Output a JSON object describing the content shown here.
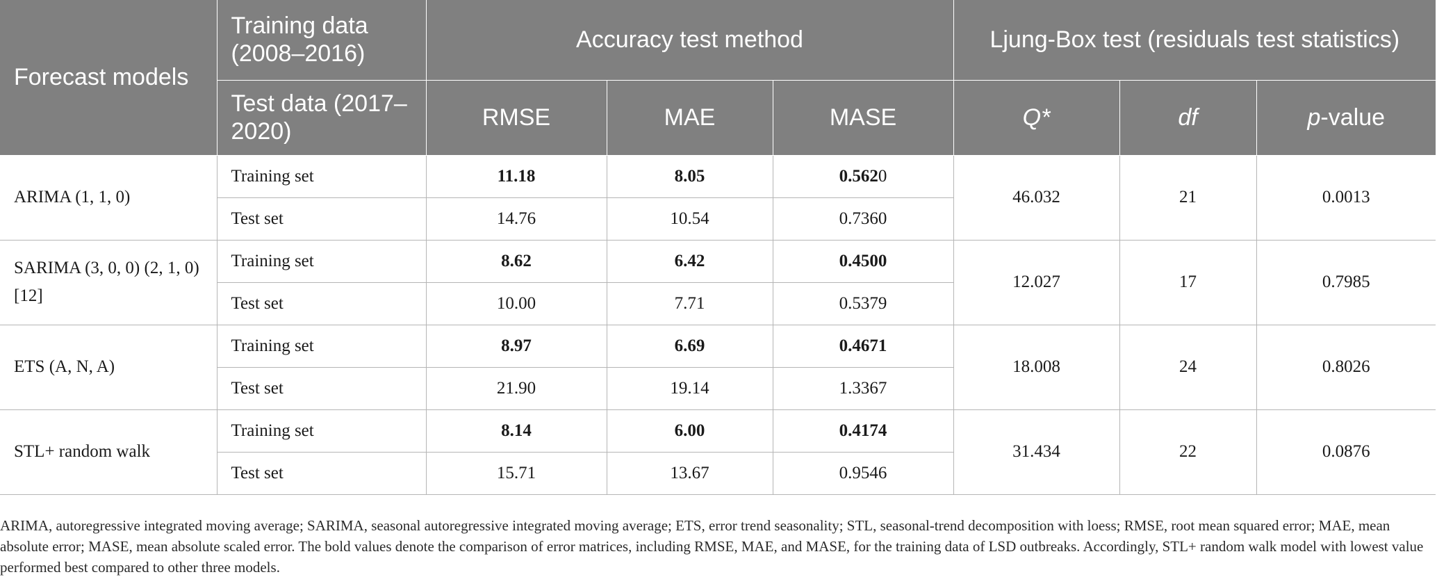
{
  "header": {
    "forecast_models": "Forecast models",
    "training_data": "Training data (2008–2016)",
    "test_data": "Test data (2017–2020)",
    "accuracy": "Accuracy test method",
    "ljung_box": "Ljung-Box test (residuals test statistics)",
    "rmse": "RMSE",
    "mae": "MAE",
    "mase": "MASE",
    "q_star": "Q*",
    "df": "df",
    "p_value_italic": "p",
    "p_value_rest": "-value"
  },
  "rows": [
    {
      "model": "ARIMA (1, 1, 0)",
      "train": {
        "label": "Training set",
        "rmse": "11.18",
        "mae": "8.05",
        "mase_bold": "0.562",
        "mase_rest": "0"
      },
      "test": {
        "label": "Test set",
        "rmse": "14.76",
        "mae": "10.54",
        "mase": "0.7360"
      },
      "q": "46.032",
      "df": "21",
      "p": "0.0013"
    },
    {
      "model": "SARIMA (3, 0, 0) (2, 1, 0) [12]",
      "train": {
        "label": "Training set",
        "rmse": "8.62",
        "mae": "6.42",
        "mase_bold": "0.4500",
        "mase_rest": ""
      },
      "test": {
        "label": "Test set",
        "rmse": "10.00",
        "mae": "7.71",
        "mase": "0.5379"
      },
      "q": "12.027",
      "df": "17",
      "p": "0.7985"
    },
    {
      "model": "ETS (A, N, A)",
      "train": {
        "label": "Training set",
        "rmse": "8.97",
        "mae": "6.69",
        "mase_bold": "0.4671",
        "mase_rest": ""
      },
      "test": {
        "label": "Test set",
        "rmse": "21.90",
        "mae": "19.14",
        "mase": "1.3367"
      },
      "q": "18.008",
      "df": "24",
      "p": "0.8026"
    },
    {
      "model": "STL+ random walk",
      "train": {
        "label": "Training set",
        "rmse": "8.14",
        "mae": "6.00",
        "mase_bold": "0.4174",
        "mase_rest": ""
      },
      "test": {
        "label": "Test set",
        "rmse": "15.71",
        "mae": "13.67",
        "mase": "0.9546"
      },
      "q": "31.434",
      "df": "22",
      "p": "0.0876"
    }
  ],
  "footnote": "ARIMA, autoregressive integrated moving average; SARIMA, seasonal autoregressive integrated moving average; ETS, error trend seasonality; STL, seasonal-trend decomposition with loess; RMSE, root mean squared error; MAE, mean absolute error; MASE, mean absolute scaled error. The bold values denote the comparison of error matrices, including RMSE, MAE, and MASE, for the training data of LSD outbreaks. Accordingly, STL+ random walk model with lowest value performed best compared to other three models."
}
